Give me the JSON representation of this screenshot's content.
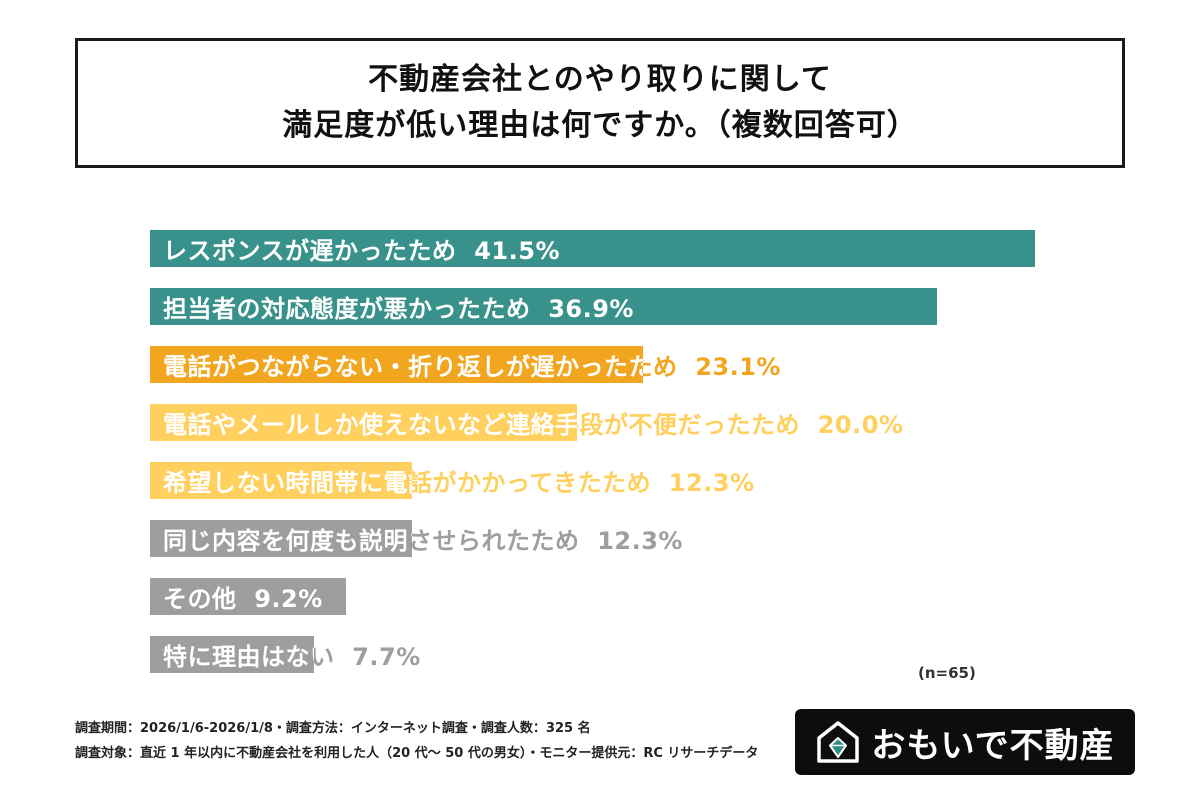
{
  "title": {
    "line1": "不動産会社とのやり取りに関して",
    "line2": "満足度が低い理由は何ですか。（複数回答可）"
  },
  "chart_data": {
    "type": "bar",
    "orientation": "horizontal",
    "unit": "%",
    "xlim": [
      0,
      41.5
    ],
    "sample_note": "(n=65)",
    "colors": {
      "teal": "#38918a",
      "orange": "#f2a51f",
      "yellow": "#ffd05e",
      "gray": "#9e9e9e"
    },
    "items": [
      {
        "label": "レスポンスが遅かったため",
        "value": 41.5,
        "display": "41.5%",
        "color": "#38918a"
      },
      {
        "label": "担当者の対応態度が悪かったため",
        "value": 36.9,
        "display": "36.9%",
        "color": "#38918a"
      },
      {
        "label": "電話がつながらない・折り返しが遅かったため",
        "value": 23.1,
        "display": "23.1%",
        "color": "#f2a51f"
      },
      {
        "label": "電話やメールしか使えないなど連絡手段が不便だったため",
        "value": 20.0,
        "display": "20.0%",
        "color": "#ffd05e"
      },
      {
        "label": "希望しない時間帯に電話がかかってきたため",
        "value": 12.3,
        "display": "12.3%",
        "color": "#ffd05e"
      },
      {
        "label": "同じ内容を何度も説明させられたため",
        "value": 12.3,
        "display": "12.3%",
        "color": "#9e9e9e"
      },
      {
        "label": "その他",
        "value": 9.2,
        "display": "9.2%",
        "color": "#9e9e9e"
      },
      {
        "label": "特に理由はない",
        "value": 7.7,
        "display": "7.7%",
        "color": "#9e9e9e"
      }
    ]
  },
  "footer": {
    "note1": "調査期間：2026/1/6-2026/1/8・調査方法：インターネット調査・調査人数：325 名",
    "note2": "調査対象：直近 1 年以内に不動産会社を利用した人（20 代〜 50 代の男女）・モニター提供元：RC リサーチデータ",
    "logo_text": "おもいで不動産"
  }
}
